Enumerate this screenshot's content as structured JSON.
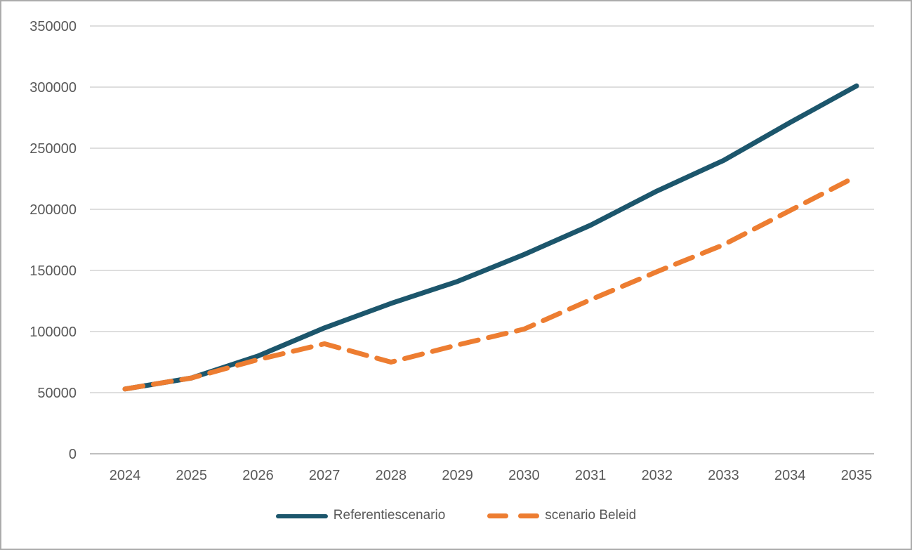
{
  "frame": {
    "background": "#ffffff",
    "border_color": "#ababab"
  },
  "chart_data": {
    "type": "line",
    "x": [
      2024,
      2025,
      2026,
      2027,
      2028,
      2029,
      2030,
      2031,
      2032,
      2033,
      2034,
      2035
    ],
    "series": [
      {
        "name": "Referentiescenario",
        "color": "#1c566c",
        "line_style": "solid",
        "values": [
          53000,
          62000,
          80000,
          103000,
          123000,
          141000,
          163000,
          187000,
          215000,
          240000,
          271000,
          301000
        ]
      },
      {
        "name": "scenario Beleid",
        "color": "#ed7d31",
        "line_style": "dashed",
        "values": [
          53000,
          62000,
          77000,
          90000,
          75000,
          89000,
          102000,
          126000,
          149000,
          171000,
          199000,
          227000
        ]
      }
    ],
    "title": "",
    "xlabel": "",
    "ylabel": "",
    "ylim": [
      0,
      350000
    ],
    "ytick_step": 50000,
    "ytick_labels": [
      "0",
      "50000",
      "100000",
      "150000",
      "200000",
      "250000",
      "300000",
      "350000"
    ],
    "xtick_labels": [
      "2024",
      "2025",
      "2026",
      "2027",
      "2028",
      "2029",
      "2030",
      "2031",
      "2032",
      "2033",
      "2034",
      "2035"
    ],
    "grid": "horizontal",
    "gridline_color": "#d9d9d9",
    "axis_line_color": "#bfbfbf",
    "tick_label_color": "#595959",
    "legend_position": "bottom"
  }
}
